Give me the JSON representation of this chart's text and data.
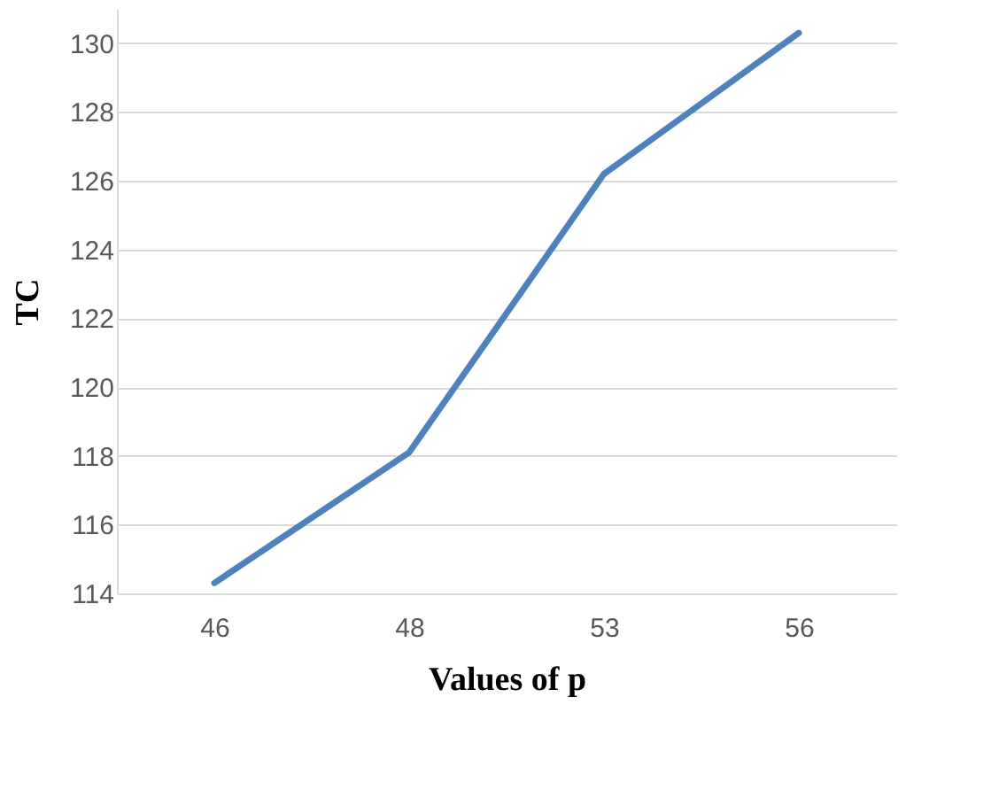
{
  "chart_data": {
    "type": "line",
    "xlabel": "Values of p",
    "ylabel": "TC",
    "categories": [
      "46",
      "48",
      "53",
      "56"
    ],
    "series": [
      {
        "color": "#4f81bd",
        "values": [
          114.3,
          118.1,
          126.2,
          130.3
        ]
      }
    ],
    "ylim": [
      114,
      131
    ],
    "yticks": [
      114,
      116,
      118,
      120,
      122,
      124,
      126,
      128,
      130
    ],
    "grid": "y",
    "marker": "none",
    "line_style": "solid"
  }
}
